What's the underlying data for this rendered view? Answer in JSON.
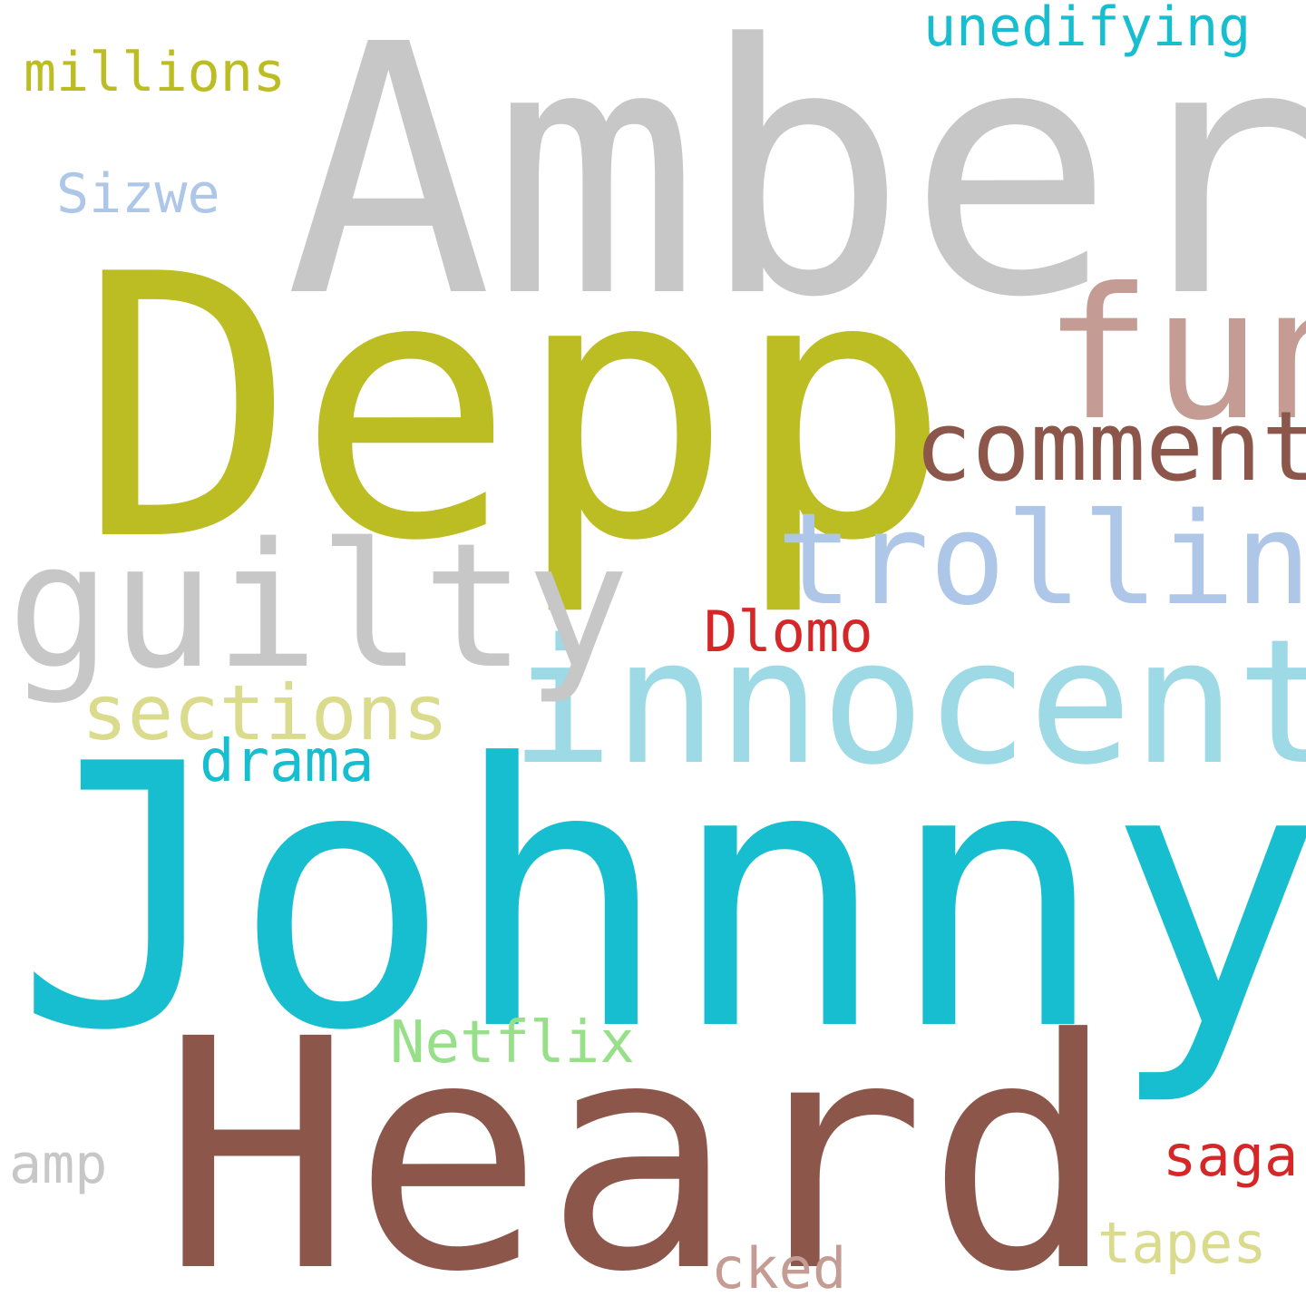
{
  "words": [
    {
      "id": "amber",
      "text": "Amber",
      "color": "#c7c7c7"
    },
    {
      "id": "depp",
      "text": "Depp",
      "color": "#bcbd22"
    },
    {
      "id": "johnny",
      "text": "Johnny",
      "color": "#17becf"
    },
    {
      "id": "heard",
      "text": "Heard",
      "color": "#8c564b"
    },
    {
      "id": "innocent",
      "text": "innocent",
      "color": "#9edae5"
    },
    {
      "id": "guilty",
      "text": "guilty",
      "color": "#c7c7c7"
    },
    {
      "id": "trolling",
      "text": "trolling",
      "color": "#aec7e8"
    },
    {
      "id": "fun",
      "text": "fun",
      "color": "#c49c94"
    },
    {
      "id": "comment",
      "text": "comment",
      "color": "#8c564b"
    },
    {
      "id": "unedifying",
      "text": "unedifying",
      "color": "#17becf"
    },
    {
      "id": "millions",
      "text": "millions",
      "color": "#bcbd22"
    },
    {
      "id": "sizwe",
      "text": "Sizwe",
      "color": "#aec7e8"
    },
    {
      "id": "dlomo",
      "text": "Dlomo",
      "color": "#d62728"
    },
    {
      "id": "sections",
      "text": "sections",
      "color": "#dbdb8d"
    },
    {
      "id": "drama",
      "text": "drama",
      "color": "#17becf"
    },
    {
      "id": "netflix",
      "text": "Netflix",
      "color": "#98df8a"
    },
    {
      "id": "amp",
      "text": "amp",
      "color": "#c7c7c7"
    },
    {
      "id": "saga",
      "text": "saga",
      "color": "#d62728"
    },
    {
      "id": "tapes",
      "text": "tapes",
      "color": "#dbdb8d"
    },
    {
      "id": "cked",
      "text": "cked",
      "color": "#c49c94"
    }
  ]
}
